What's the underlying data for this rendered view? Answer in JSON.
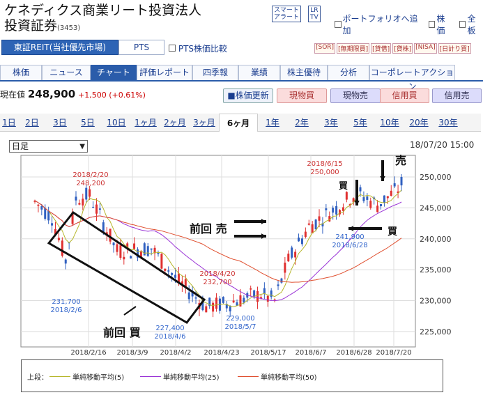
{
  "header": {
    "title": "ケネディクス商業リート投資法人　投資証券",
    "code": "(3453)",
    "btn_smart": "スマート\nアラート",
    "btn_tv": "LR\nTV",
    "link_portfolio": "ポートフォリオへ追加",
    "link_kabuka": "株価",
    "link_zenban": "全板"
  },
  "market": {
    "selected": "東証REIT(当社優先市場)",
    "pts": "PTS",
    "compare": "PTS株価比較",
    "badges": [
      "[SOR]",
      "[無期限買]",
      "[貸借]",
      "[貸株]",
      "[NISA]",
      "[日計り買]"
    ]
  },
  "nav": {
    "tabs": [
      "株価",
      "ニュース",
      "チャート",
      "評価レポート",
      "四季報",
      "業績",
      "株主優待",
      "分析",
      "コーポレートアクション"
    ],
    "active": 2
  },
  "price": {
    "label": "現在値",
    "value": "248,900",
    "change": "+1,500 (+0.61%)",
    "update": "株価更新",
    "btn_genbutsu_buy": "現物買",
    "btn_genbutsu_sell": "現物売",
    "btn_shinyo_buy": "信用買",
    "btn_shinyo_sell": "信用売"
  },
  "periods": {
    "items": [
      "1日",
      "2日",
      "3日",
      "5日",
      "10日",
      "1ヶ月",
      "2ヶ月",
      "3ヶ月",
      "6ヶ月",
      "1年",
      "2年",
      "3年",
      "5年",
      "10年",
      "20年",
      "30年"
    ],
    "active": 8
  },
  "chart_controls": {
    "interval": "日足",
    "datetime": "18/07/20 15:00"
  },
  "chart_data": {
    "type": "candlestick",
    "y_ticks": [
      "250,000",
      "245,000",
      "240,000",
      "235,000",
      "230,000",
      "225,000"
    ],
    "ylim": [
      222500,
      253500
    ],
    "x_labels": [
      "2018/2/16",
      "2018/3/9",
      "2018/4/2",
      "2018/4/23",
      "2018/5/17",
      "2018/6/7",
      "2018/6/28",
      "2018/7/20"
    ],
    "annotations": [
      {
        "text": "2018/2/20",
        "value": 248200,
        "label": "248,200",
        "color": "#c33"
      },
      {
        "text": "2018/2/6",
        "value": 231700,
        "label": "231,700",
        "color": "#36c"
      },
      {
        "text": "2018/4/20",
        "value": 232700,
        "label": "232,700",
        "color": "#c33"
      },
      {
        "text": "2018/4/6",
        "value": 227400,
        "label": "227,400",
        "color": "#36c"
      },
      {
        "text": "2018/5/7",
        "value": 229000,
        "label": "229,000",
        "color": "#36c"
      },
      {
        "text": "2018/6/15",
        "value": 250000,
        "label": "250,000",
        "color": "#c33"
      },
      {
        "text": "2018/6/28",
        "value": 241900,
        "label": "241,900",
        "color": "#36c"
      }
    ],
    "overlay_labels": {
      "sell_prev": "前回 売",
      "buy_prev": "前回 買",
      "buy": "買",
      "sell": "売",
      "buy2": "買"
    },
    "legend": {
      "prefix": "上段：",
      "sma5": "単純移動平均(5)",
      "sma25": "単純移動平均(25)",
      "sma50": "単純移動平均(50)",
      "sma5_color": "#b6b62a",
      "sma25_color": "#9a33d6",
      "sma50_color": "#e05030"
    }
  },
  "colors": {
    "up": "#e03030",
    "down": "#3060c0",
    "accent": "#2a5caa"
  }
}
